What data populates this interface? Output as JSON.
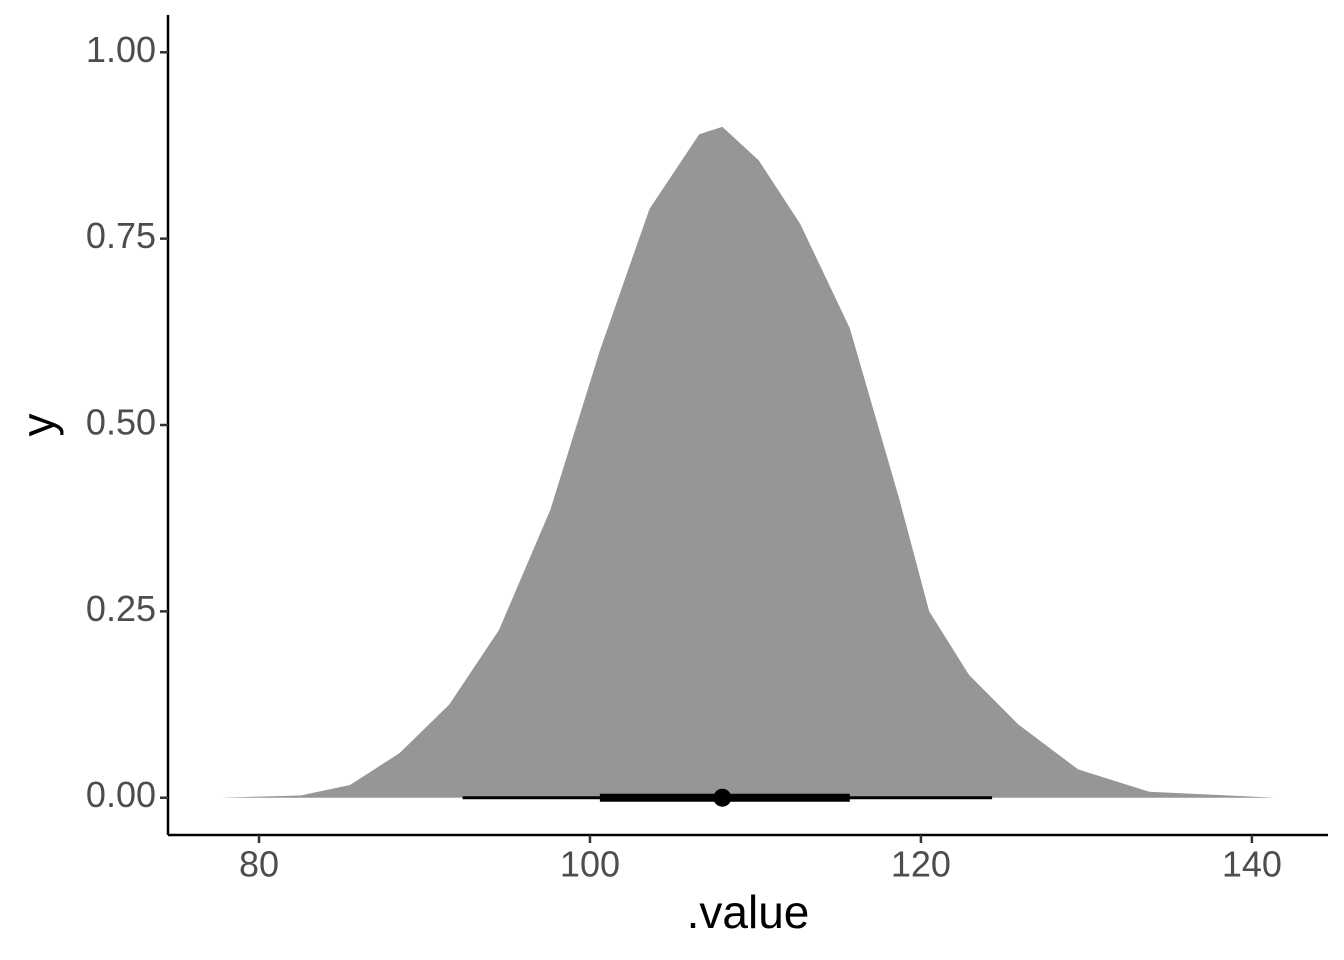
{
  "chart_data": {
    "type": "density",
    "x_label": ".value",
    "y_label": "y",
    "x": [
      77.6,
      82.5,
      85.5,
      88.5,
      91.5,
      94.5,
      97.6,
      100.6,
      103.6,
      106.6,
      108.0,
      110.2,
      112.7,
      115.7,
      118.7,
      120.5,
      122.9,
      125.9,
      129.5,
      133.8,
      141.4
    ],
    "values": [
      0,
      0.003,
      0.017,
      0.06,
      0.125,
      0.225,
      0.386,
      0.6,
      0.79,
      0.89,
      0.9,
      0.855,
      0.77,
      0.63,
      0.4,
      0.25,
      0.165,
      0.098,
      0.038,
      0.008,
      0
    ],
    "color": "#969696",
    "interval": {
      "point": 108.0,
      "inner": [
        100.6,
        115.7
      ],
      "outer": [
        92.3,
        124.3
      ],
      "color": "#000000"
    },
    "xlim": [
      74.5,
      144.6
    ],
    "xticks": [
      80,
      100,
      120,
      140
    ],
    "ylim": [
      -0.05,
      1.05
    ],
    "yticks": [
      {
        "value": 0,
        "label": "0.00"
      },
      {
        "value": 0.25,
        "label": "0.25"
      },
      {
        "value": 0.5,
        "label": "0.50"
      },
      {
        "value": 0.75,
        "label": "0.75"
      },
      {
        "value": 1,
        "label": "1.00"
      }
    ]
  }
}
